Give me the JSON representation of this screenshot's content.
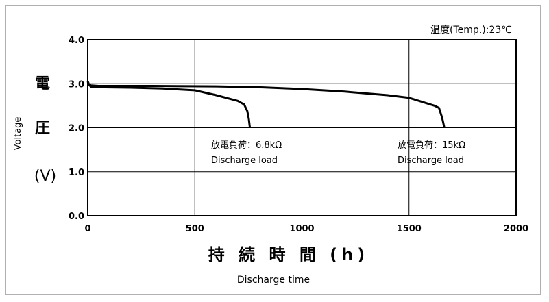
{
  "chart_data": {
    "type": "line",
    "temperature_note": "温度(Temp.):23℃",
    "ylabel_jp": [
      "電",
      "圧",
      "(V)"
    ],
    "ylabel_en": "Voltage",
    "xlabel_jp": "持 続 時 間 (h)",
    "xlabel_en": "Discharge time",
    "xlim": [
      0,
      2000
    ],
    "ylim": [
      0.0,
      4.0
    ],
    "x_ticks": [
      "0",
      "500",
      "1000",
      "1500",
      "2000"
    ],
    "y_ticks": [
      "0.0",
      "1.0",
      "2.0",
      "3.0",
      "4.0"
    ],
    "grid": true,
    "series": [
      {
        "load_jp": "放電負荷：6.8kΩ",
        "load_en": "Discharge load",
        "points": [
          [
            0,
            3.05
          ],
          [
            5,
            2.98
          ],
          [
            15,
            2.93
          ],
          [
            50,
            2.92
          ],
          [
            200,
            2.91
          ],
          [
            350,
            2.89
          ],
          [
            500,
            2.85
          ],
          [
            600,
            2.74
          ],
          [
            700,
            2.61
          ],
          [
            730,
            2.53
          ],
          [
            745,
            2.38
          ],
          [
            752,
            2.2
          ],
          [
            757,
            2.0
          ]
        ]
      },
      {
        "load_jp": "放電負荷：15kΩ",
        "load_en": "Discharge load",
        "points": [
          [
            0,
            3.05
          ],
          [
            5,
            2.99
          ],
          [
            15,
            2.96
          ],
          [
            50,
            2.95
          ],
          [
            300,
            2.95
          ],
          [
            600,
            2.94
          ],
          [
            800,
            2.92
          ],
          [
            1000,
            2.88
          ],
          [
            1200,
            2.82
          ],
          [
            1400,
            2.74
          ],
          [
            1500,
            2.68
          ],
          [
            1620,
            2.5
          ],
          [
            1640,
            2.45
          ],
          [
            1655,
            2.22
          ],
          [
            1665,
            2.0
          ]
        ]
      }
    ]
  }
}
